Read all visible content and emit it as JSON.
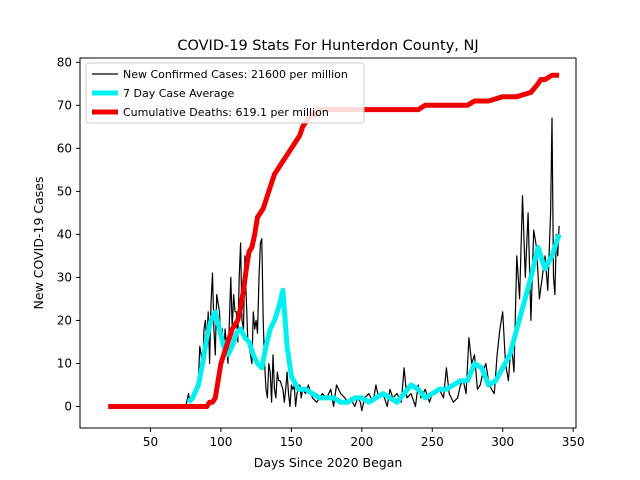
{
  "chart_data": {
    "type": "line",
    "title": "COVID-19 Stats For Hunterdon County, NJ",
    "xlabel": "Days Since 2020 Began",
    "ylabel": "New COVID-19 Cases",
    "xlim": [
      0,
      352
    ],
    "ylim": [
      -5,
      81
    ],
    "xticks": [
      50,
      100,
      150,
      200,
      250,
      300,
      350
    ],
    "yticks": [
      0,
      10,
      20,
      30,
      40,
      50,
      60,
      70,
      80
    ],
    "legend_position": "top-left",
    "series": [
      {
        "name": "New Confirmed Cases: 21600 per million",
        "color": "#000000",
        "x": [
          20,
          75,
          77,
          78,
          80,
          82,
          84,
          85,
          86,
          87,
          88,
          89,
          90,
          91,
          92,
          93,
          94,
          95,
          96,
          97,
          98,
          99,
          100,
          101,
          102,
          103,
          104,
          105,
          106,
          107,
          108,
          109,
          110,
          111,
          112,
          113,
          114,
          115,
          116,
          117,
          118,
          119,
          120,
          121,
          122,
          123,
          124,
          125,
          126,
          127,
          128,
          129,
          130,
          131,
          132,
          133,
          134,
          135,
          136,
          137,
          138,
          139,
          140,
          141,
          142,
          143,
          144,
          145,
          146,
          147,
          148,
          149,
          150,
          151,
          152,
          153,
          154,
          155,
          156,
          157,
          158,
          160,
          162,
          165,
          168,
          170,
          172,
          175,
          178,
          180,
          182,
          185,
          188,
          190,
          192,
          195,
          197,
          199,
          200,
          202,
          205,
          208,
          210,
          212,
          215,
          218,
          220,
          222,
          225,
          228,
          230,
          232,
          235,
          238,
          240,
          242,
          245,
          248,
          250,
          252,
          255,
          258,
          260,
          262,
          265,
          268,
          270,
          272,
          274,
          276,
          278,
          280,
          282,
          284,
          286,
          288,
          290,
          292,
          294,
          296,
          298,
          300,
          302,
          304,
          306,
          308,
          310,
          312,
          314,
          316,
          318,
          320,
          322,
          324,
          326,
          328,
          330,
          332,
          334,
          335,
          336,
          337,
          338,
          339,
          340
        ],
        "values": [
          0,
          0,
          3,
          1,
          2,
          4,
          6,
          14,
          12,
          8,
          18,
          20,
          15,
          22,
          10,
          24,
          31,
          18,
          12,
          26,
          24,
          22,
          15,
          18,
          12,
          18,
          14,
          10,
          20,
          30,
          18,
          26,
          22,
          22,
          15,
          30,
          38,
          20,
          18,
          35,
          25,
          16,
          14,
          12,
          10,
          22,
          18,
          20,
          17,
          30,
          38,
          39,
          20,
          10,
          4,
          2,
          10,
          8,
          1,
          12,
          4,
          2,
          8,
          6,
          6,
          5,
          4,
          1,
          4,
          8,
          3,
          0,
          5,
          4,
          5,
          0,
          3,
          4,
          5,
          2,
          4,
          3,
          5,
          2,
          1,
          2,
          3,
          2,
          4,
          0,
          5,
          3,
          2,
          1,
          2,
          0,
          2,
          1,
          -1,
          2,
          3,
          1,
          5,
          2,
          3,
          0,
          4,
          2,
          3,
          1,
          9,
          2,
          3,
          0,
          5,
          2,
          4,
          1,
          3,
          3,
          4,
          2,
          9,
          3,
          1,
          2,
          5,
          6,
          3,
          16,
          10,
          12,
          4,
          5,
          8,
          10,
          6,
          4,
          3,
          12,
          18,
          22,
          10,
          6,
          15,
          8,
          35,
          25,
          49,
          30,
          45,
          20,
          41,
          37,
          25,
          30,
          35,
          27,
          45,
          67,
          30,
          26,
          40,
          35,
          42
        ]
      },
      {
        "name": "7 Day Case Average",
        "color": "#00f0f0",
        "x": [
          77,
          80,
          84,
          87,
          90,
          93,
          96,
          99,
          102,
          105,
          108,
          111,
          114,
          117,
          120,
          123,
          126,
          129,
          132,
          135,
          138,
          141,
          144,
          147,
          150,
          155,
          160,
          165,
          170,
          175,
          180,
          185,
          190,
          195,
          200,
          205,
          210,
          215,
          220,
          225,
          230,
          235,
          240,
          245,
          250,
          255,
          260,
          265,
          270,
          275,
          280,
          285,
          290,
          295,
          300,
          305,
          310,
          315,
          320,
          325,
          330,
          335,
          340
        ],
        "values": [
          1,
          2,
          5,
          10,
          16,
          20,
          22,
          18,
          14,
          12,
          14,
          17,
          18,
          16,
          15,
          12,
          10,
          9,
          14,
          18,
          20,
          23,
          27,
          14,
          7,
          4,
          4,
          3,
          2,
          2,
          2,
          1,
          1,
          2,
          2,
          1,
          2,
          3,
          2,
          1,
          3,
          5,
          4,
          2,
          3,
          4,
          4,
          5,
          6,
          6,
          10,
          9,
          5,
          6,
          9,
          12,
          18,
          24,
          30,
          37,
          32,
          35,
          40
        ]
      },
      {
        "name": "Cumulative Deaths: 619.1 per million",
        "color": "#ee0000",
        "x": [
          20,
          90,
          92,
          94,
          96,
          98,
          100,
          102,
          104,
          106,
          108,
          110,
          112,
          114,
          116,
          118,
          120,
          122,
          124,
          126,
          128,
          130,
          132,
          134,
          136,
          138,
          140,
          142,
          144,
          146,
          148,
          150,
          152,
          154,
          156,
          158,
          160,
          162,
          165,
          168,
          170,
          180,
          200,
          220,
          240,
          245,
          250,
          260,
          270,
          275,
          280,
          290,
          300,
          310,
          320,
          325,
          327,
          330,
          335,
          340
        ],
        "values": [
          0,
          0,
          1,
          1,
          2,
          6,
          10,
          12,
          14,
          16,
          18,
          19,
          20,
          23,
          27,
          32,
          36,
          37,
          40,
          44,
          45,
          46,
          48,
          50,
          52,
          54,
          55,
          56,
          57,
          58,
          59,
          60,
          61,
          62,
          63,
          65,
          66,
          67,
          68,
          68,
          69,
          69,
          69,
          69,
          69,
          70,
          70,
          70,
          70,
          70,
          71,
          71,
          72,
          72,
          73,
          75,
          76,
          76,
          77,
          77
        ]
      }
    ]
  }
}
